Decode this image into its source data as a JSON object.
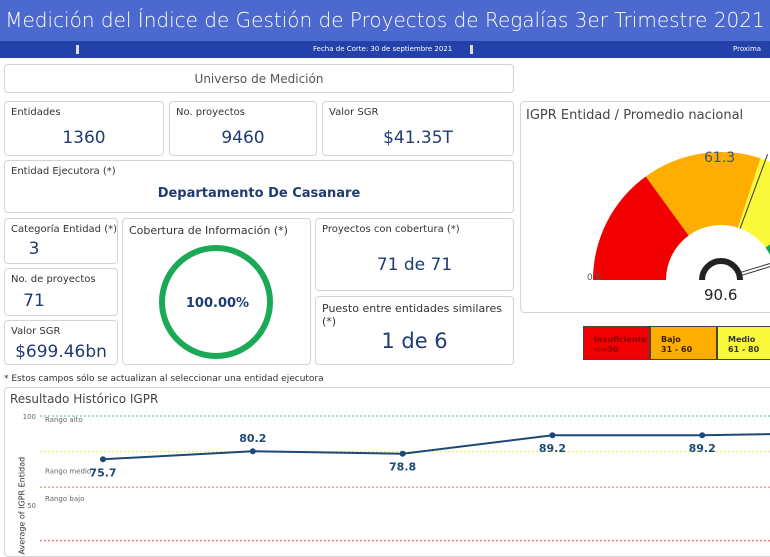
{
  "header": {
    "title": "Medición del Índice de Gestión de Proyectos de Regalías 3er Trimestre 2021",
    "fecha_corte": "Fecha de Corte: 30 de septiembre 2021",
    "proxima": "Proxima ac"
  },
  "universo": {
    "title": "Universo de Medición"
  },
  "kpis": {
    "entidades": {
      "label": "Entidades",
      "value": "1360"
    },
    "proyectos": {
      "label": "No. proyectos",
      "value": "9460"
    },
    "valor_sgr": {
      "label": "Valor SGR",
      "value": "$41.35T"
    }
  },
  "entidad": {
    "label": "Entidad Ejecutora (*)",
    "value": "Departamento De Casanare"
  },
  "categoria": {
    "label": "Categoría Entidad (*)",
    "value": "3"
  },
  "num_proyectos": {
    "label": "No. de proyectos",
    "value": "71"
  },
  "valor_entidad": {
    "label": "Valor SGR",
    "value": "$699.46bn"
  },
  "cobertura": {
    "label": "Cobertura de Información (*)",
    "value": "100.00%",
    "fraction": 1.0,
    "color": "#1aaa55"
  },
  "proy_cobertura": {
    "label": "Proyectos con cobertura (*)",
    "value": "71 de 71"
  },
  "puesto": {
    "label": "Puesto entre entidades similares (*)",
    "value": "1 de 6"
  },
  "footnote": "* Estos campos sólo se actualizan al seleccionar una entidad ejecutora",
  "gauge": {
    "title": "IGPR Entidad / Promedio nacional",
    "min": 0,
    "max": 100,
    "min_label": "0.0",
    "value": 90.6,
    "value_label": "90.6",
    "target": 61.3,
    "target_label": "61.3",
    "bands": [
      {
        "from": 0,
        "to": 30,
        "color": "#f20000"
      },
      {
        "from": 30,
        "to": 60,
        "color": "#fdae00"
      },
      {
        "from": 60,
        "to": 80,
        "color": "#f9f93a"
      },
      {
        "from": 80,
        "to": 100,
        "color": "#17a54f"
      }
    ]
  },
  "legend": [
    {
      "name": "Insuficiente",
      "range": "<=30",
      "color": "#f20000",
      "text": "#8b0000"
    },
    {
      "name": "Bajo",
      "range": "31 - 60",
      "color": "#fdae00",
      "text": "#3a2000"
    },
    {
      "name": "Medio",
      "range": "61 - 80",
      "color": "#f9f93a",
      "text": "#333"
    }
  ],
  "chart_data": {
    "type": "line",
    "title": "Resultado Histórico IGPR",
    "ylabel": "Average of IGPR Entidad",
    "ylim": [
      0,
      100
    ],
    "yticks": [
      "100",
      "50"
    ],
    "series": [
      {
        "name": "IGPR Entidad",
        "values": [
          75.7,
          80.2,
          78.8,
          89.2,
          89.2,
          90.6
        ],
        "labels": [
          "75.7",
          "80.2",
          "78.8",
          "89.2",
          "89.2",
          ""
        ]
      }
    ],
    "reference_lines": [
      {
        "label": "Rango alto",
        "y": 100,
        "color": "#8ad0b0"
      },
      {
        "label": "Rango medio",
        "y": 80,
        "color": "#f0f070"
      },
      {
        "label": "Rango bajo",
        "y": 60,
        "color": "#f3a890"
      },
      {
        "label": "",
        "y": 30,
        "color": "#f08080"
      }
    ]
  }
}
